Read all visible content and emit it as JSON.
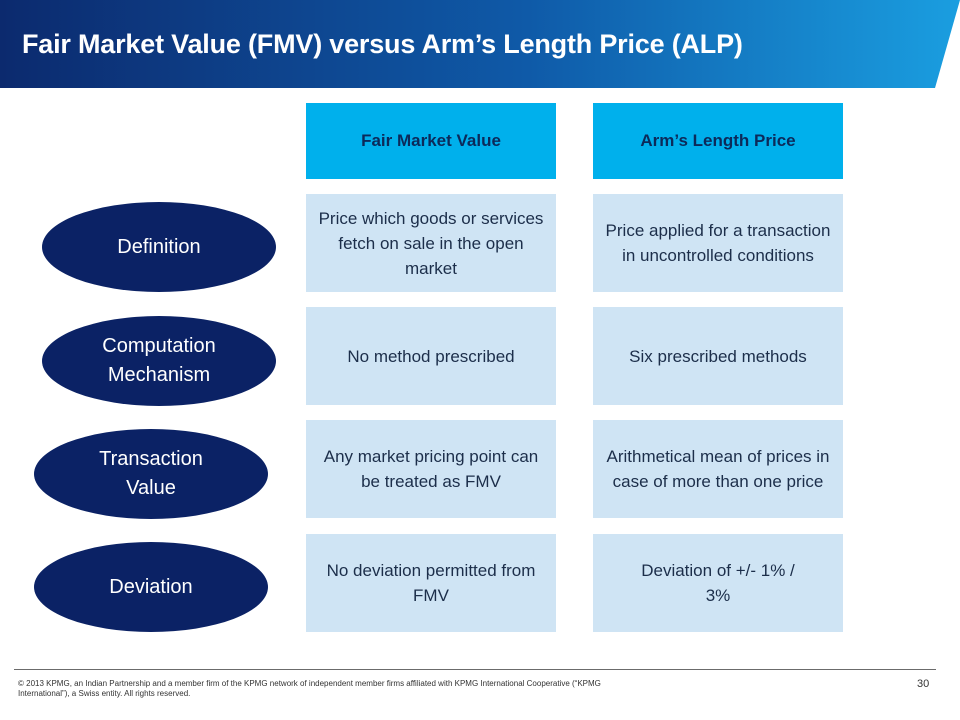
{
  "slide": {
    "title": "Fair Market Value (FMV) versus Arm’s Length Price (ALP)"
  },
  "columns": [
    "Fair Market Value",
    "Arm’s Length Price"
  ],
  "rows": [
    {
      "label": "Definition",
      "fmv": "Price which goods or services fetch on sale in the open market",
      "alp": "Price applied for a transaction in uncontrolled conditions"
    },
    {
      "label": "Computation Mechanism",
      "fmv": "No method prescribed",
      "alp": "Six prescribed methods"
    },
    {
      "label": "Transaction Value",
      "fmv": "Any market pricing point can be treated as FMV",
      "alp": "Arithmetical mean of prices in case of more than one price"
    },
    {
      "label": "Deviation",
      "fmv": "No deviation permitted from FMV",
      "alp": "Deviation of +/- 1% / 3%"
    }
  ],
  "footer": {
    "copyright": "© 2013 KPMG, an Indian Partnership and a member firm of the KPMG network of independent member firms affiliated with KPMG International Cooperative (“KPMG International”), a Swiss entity. All rights reserved.",
    "page_number": "30"
  },
  "colors": {
    "header_fill": "#00b0ec",
    "cell_fill": "#cfe4f4",
    "oval_fill": "#0b2265",
    "banner_start": "#0c2a6e",
    "banner_end": "#1a9ee0"
  }
}
